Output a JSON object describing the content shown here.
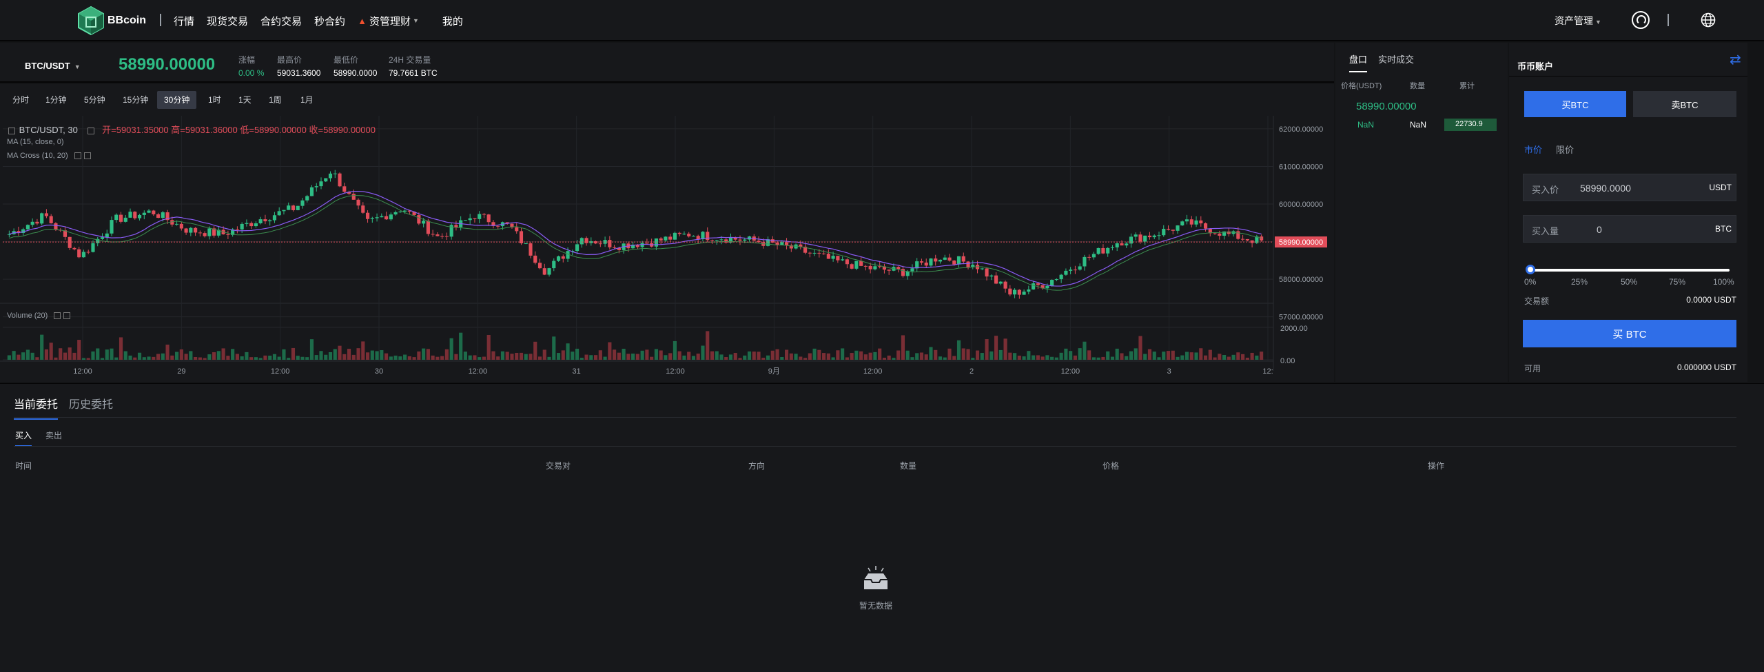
{
  "nav": {
    "logo_text": "BBcoin",
    "items": [
      "行情",
      "现货交易",
      "合约交易",
      "秒合约",
      "资管理财",
      "我的"
    ],
    "asset_management": "资产管理"
  },
  "ticker": {
    "pair": "BTC/USDT",
    "last_price": "58990.00000",
    "change_label": "涨幅",
    "change_value": "0.00 %",
    "high_label": "最高价",
    "high_value": "59031.3600",
    "low_label": "最低价",
    "low_value": "58990.0000",
    "volume_label": "24H 交易量",
    "volume_value": "79.7661 BTC"
  },
  "intervals": [
    "分时",
    "1分钟",
    "5分钟",
    "15分钟",
    "30分钟",
    "1时",
    "1天",
    "1周",
    "1月"
  ],
  "active_interval": "30分钟",
  "chart_legend": {
    "symbol": "BTC/USDT, 30",
    "ohlc": "开=59031.35000  高=59031.36000  低=58990.00000  收=58990.00000",
    "ma": "MA (15, close, 0)",
    "ma_cross": "MA Cross (10, 20)",
    "volume": "Volume (20)"
  },
  "chart_data": {
    "type": "candlestick",
    "title": "BTC/USDT, 30",
    "price_axis": [
      "62000.00000",
      "61000.00000",
      "60000.00000",
      "59000.00000",
      "58000.00000",
      "57000.00000"
    ],
    "price_range": [
      56700,
      62200
    ],
    "current_price_label": "58990.00000",
    "volume_axis": [
      "2000.00",
      "0.00"
    ],
    "x_labels": [
      "12:00",
      "29",
      "12:00",
      "30",
      "12:00",
      "31",
      "12:00",
      "9月",
      "12:00",
      "2",
      "12:00",
      "3",
      "12:"
    ],
    "close_keyframes": [
      59200,
      59700,
      58600,
      59600,
      59800,
      59300,
      59200,
      59600,
      59900,
      60900,
      59500,
      59900,
      59100,
      59700,
      59400,
      58200,
      59100,
      58900,
      59000,
      59200,
      59100,
      59000,
      58800,
      58500,
      58300,
      58200,
      58600,
      58400,
      57600,
      57900,
      58500,
      59000,
      59200,
      59500,
      59200,
      59000
    ],
    "volume_range": [
      0,
      2400
    ]
  },
  "order_book": {
    "tabs": [
      "盘口",
      "实时成交"
    ],
    "headers": [
      "价格(USDT)",
      "数量",
      "累计"
    ],
    "mid_price": "58990.00000",
    "row": [
      "NaN",
      "NaN",
      "22730.9"
    ]
  },
  "trade": {
    "title": "币币账户",
    "buy_tab": "买BTC",
    "sell_tab": "卖BTC",
    "type_tabs": [
      "市价",
      "限价"
    ],
    "price_label": "买入价",
    "price_value": "58990.0000",
    "price_unit": "USDT",
    "qty_label": "买入量",
    "qty_value": "0",
    "qty_unit": "BTC",
    "slider_ticks": [
      "0%",
      "25%",
      "50%",
      "75%",
      "100%"
    ],
    "slider_value": 0,
    "amount_label": "交易额",
    "amount_value": "0.0000 USDT",
    "submit": "买 BTC",
    "available_label": "可用",
    "available_value": "0.000000 USDT"
  },
  "orders": {
    "tabs": [
      "当前委托",
      "历史委托"
    ],
    "side_tabs": [
      "买入",
      "卖出"
    ],
    "columns": [
      "时间",
      "交易对",
      "方向",
      "数量",
      "价格",
      "操作"
    ],
    "empty": "暂无数据"
  },
  "colors": {
    "up": "#2ebd85",
    "down": "#e24d5a",
    "accent": "#2f6ee8",
    "background": "#17181b"
  }
}
